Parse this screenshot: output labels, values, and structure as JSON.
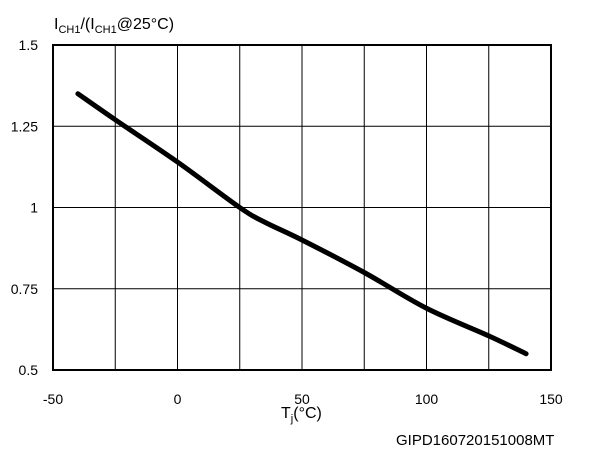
{
  "chart_data": {
    "type": "line",
    "title": "",
    "ylabel": {
      "base": "I",
      "sub1": "CH1",
      "mid": "/(I",
      "sub2": "CH1",
      "tail": "@25°C)"
    },
    "xlabel": {
      "base": "T",
      "sub": "j",
      "tail": "(°C)"
    },
    "xlim": [
      -50,
      150
    ],
    "ylim": [
      0.5,
      1.5
    ],
    "xticks": [
      -50,
      0,
      50,
      100,
      150
    ],
    "yticks": [
      0.5,
      0.75,
      1,
      1.25,
      1.5
    ],
    "xtick_labels": [
      "-50",
      "0",
      "50",
      "100",
      "150"
    ],
    "ytick_labels": [
      "0.5",
      "0.75",
      "1",
      "1.25",
      "1.5"
    ],
    "vertical_gridlines": [
      -50,
      -25,
      0,
      25,
      50,
      75,
      100,
      125,
      150
    ],
    "horizontal_gridlines": [
      0.5,
      0.75,
      1,
      1.25,
      1.5
    ],
    "grid": true,
    "legend": "none",
    "series": [
      {
        "color": "#000000",
        "x": [
          -40,
          -25,
          0,
          25,
          35,
          50,
          75,
          100,
          125,
          140
        ],
        "y": [
          1.35,
          1.27,
          1.14,
          1.0,
          0.955,
          0.9,
          0.8,
          0.69,
          0.605,
          0.55
        ]
      }
    ]
  },
  "annotations": {
    "source_code": "GIPD160720151008MT"
  }
}
